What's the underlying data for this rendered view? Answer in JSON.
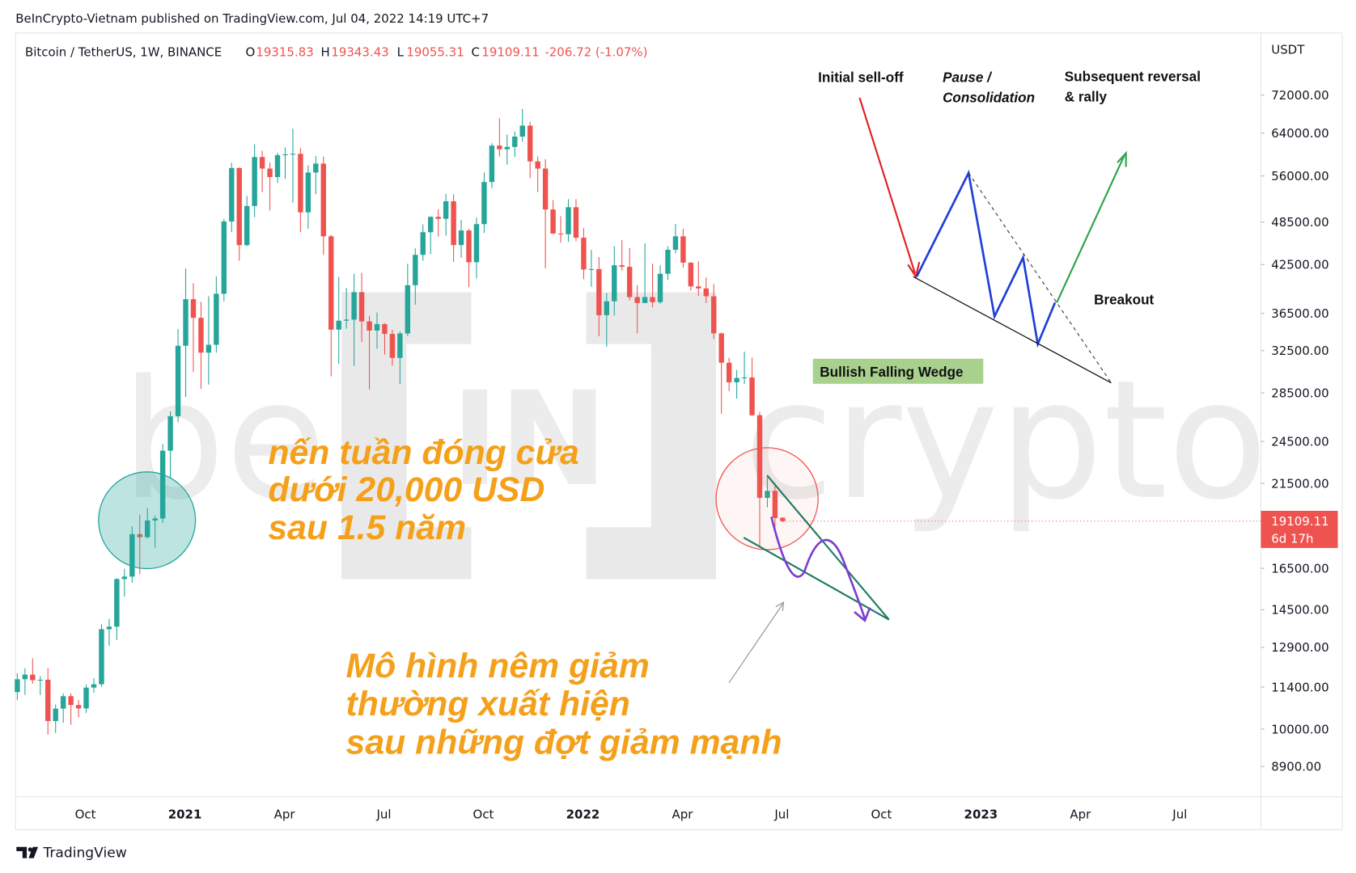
{
  "header": {
    "published": "BeInCrypto-Vietnam published on TradingView.com, Jul 04, 2022 14:19 UTC+7",
    "symbol": "Bitcoin / TetherUS, 1W, BINANCE",
    "open_label": "O",
    "high_label": "H",
    "low_label": "L",
    "close_label": "C",
    "change": "-206.72 (-1.07%)",
    "price_timer": "6d 17h",
    "footer": "TradingView"
  },
  "watermark": [
    "be",
    "IN",
    "crypto"
  ],
  "chart_data": {
    "type": "candlestick",
    "log": true,
    "grid": false,
    "y_unit": "USDT",
    "up_color": "#26a69a",
    "down_color": "#ef5350",
    "categories": [
      null,
      null,
      null,
      null,
      null,
      null,
      null,
      null,
      "Oct",
      null,
      null,
      null,
      null,
      null,
      null,
      null,
      null,
      null,
      null,
      null,
      null,
      "2021",
      null,
      null,
      null,
      null,
      null,
      null,
      null,
      null,
      null,
      null,
      null,
      null,
      "Apr",
      null,
      null,
      null,
      null,
      null,
      null,
      null,
      null,
      null,
      null,
      null,
      null,
      "Jul",
      null,
      null,
      null,
      null,
      null,
      null,
      null,
      null,
      null,
      null,
      null,
      null,
      "Oct",
      null,
      null,
      null,
      null,
      null,
      null,
      null,
      null,
      null,
      null,
      null,
      null,
      "2022",
      null,
      null,
      null,
      null,
      null,
      null,
      null,
      null,
      null,
      null,
      null,
      null,
      "Apr",
      null,
      null,
      null,
      null,
      null,
      null,
      null,
      null,
      null,
      null,
      null,
      null,
      "Jul",
      null,
      null,
      null,
      null,
      null,
      null,
      null,
      null,
      null,
      null,
      null,
      null,
      "Oct",
      null,
      null,
      null,
      null,
      null,
      null,
      null,
      null,
      null,
      null,
      null,
      null,
      "2023",
      null,
      null,
      null,
      null,
      null,
      null,
      null,
      null,
      null,
      null,
      null,
      null,
      "Apr",
      null,
      null,
      null,
      null,
      null,
      null,
      null,
      null,
      null,
      null,
      null,
      null,
      "Jul",
      null,
      null,
      null,
      null,
      null,
      null,
      null,
      null,
      null,
      null,
      null
    ],
    "open": [
      11222,
      11681,
      11850,
      11648,
      11663,
      10256,
      10660,
      11080,
      10780,
      10666,
      11380,
      11500,
      13650,
      13760,
      15960,
      16080,
      18350,
      18180,
      19150,
      19270,
      23800,
      26500,
      33000,
      38150,
      36000,
      32300,
      33100,
      38800,
      48600,
      57400,
      45140,
      51000,
      59400,
      57300,
      55800,
      59750,
      59900,
      60000,
      50000,
      56600,
      58200,
      46400,
      34700,
      35680,
      35800,
      39000,
      35600,
      34600,
      35300,
      34240,
      31780,
      34290,
      39850,
      43800,
      47000,
      49300,
      49000,
      51750,
      45150,
      47250,
      42800,
      48200,
      54950,
      61550,
      60850,
      61300,
      63300,
      65500,
      58600,
      57300,
      50450,
      46800,
      46700,
      50800,
      46200,
      41850,
      41900,
      36300,
      37900,
      42400,
      42200,
      38400,
      37700,
      38400,
      37800,
      41300,
      44500,
      46400,
      42750,
      39700,
      39450,
      38500,
      34300,
      31300,
      29450,
      29850,
      29900,
      26580,
      20550,
      21000,
      19315.83,
      null,
      null,
      null,
      null,
      null,
      null,
      null,
      null,
      null,
      null,
      null,
      null,
      null,
      null,
      null,
      null,
      null,
      null,
      null,
      null,
      null,
      null,
      null,
      null,
      null,
      null,
      null,
      null,
      null,
      null,
      null,
      null,
      null,
      null,
      null,
      null,
      null,
      null,
      null,
      null,
      null,
      null,
      null,
      null,
      null,
      null,
      null,
      null,
      null,
      null,
      null,
      null,
      null,
      null,
      null,
      null,
      null,
      null,
      null,
      null,
      null,
      null
    ],
    "high": [
      11902,
      12086,
      12468,
      11800,
      12088,
      10800,
      11178,
      11180,
      10950,
      11490,
      11720,
      13860,
      14100,
      16000,
      16480,
      18800,
      19500,
      19900,
      19450,
      24300,
      26900,
      34778,
      41950,
      40100,
      37850,
      38500,
      40950,
      49000,
      58350,
      57500,
      52640,
      61800,
      60600,
      58400,
      60200,
      61200,
      64900,
      61100,
      57900,
      59600,
      59500,
      46600,
      40900,
      39500,
      41300,
      41400,
      36200,
      36600,
      35400,
      34670,
      34500,
      42600,
      44700,
      48150,
      49400,
      50500,
      52950,
      52900,
      48850,
      47500,
      49200,
      56600,
      62000,
      67000,
      63700,
      64300,
      69000,
      66300,
      59500,
      59000,
      51950,
      49400,
      52100,
      52100,
      47600,
      44500,
      43500,
      38900,
      45000,
      45850,
      44750,
      39850,
      45400,
      42600,
      42400,
      45000,
      48200,
      47500,
      42800,
      42900,
      40800,
      40000,
      34400,
      31800,
      30600,
      32400,
      31800,
      26850,
      21900,
      21500,
      19343.43,
      null,
      null,
      null,
      null,
      null,
      null,
      null,
      null,
      null,
      null,
      null,
      null,
      null,
      null,
      null,
      null,
      null,
      null,
      null,
      null,
      null,
      null,
      null,
      null,
      null,
      null,
      null,
      null,
      null,
      null,
      null,
      null,
      null,
      null,
      null,
      null,
      null,
      null,
      null,
      null,
      null,
      null,
      null,
      null,
      null,
      null,
      null,
      null,
      null,
      null,
      null,
      null,
      null,
      null,
      null,
      null,
      null,
      null,
      null,
      null,
      null,
      null
    ],
    "low": [
      10953,
      11125,
      11520,
      11120,
      9825,
      9875,
      10200,
      10136,
      10370,
      10520,
      11200,
      11410,
      12960,
      13200,
      15100,
      15780,
      16200,
      18100,
      17600,
      19000,
      21900,
      26000,
      28130,
      30400,
      28850,
      29240,
      32300,
      37900,
      47000,
      43000,
      45000,
      49250,
      53250,
      50300,
      54800,
      55500,
      51500,
      47000,
      47500,
      52900,
      43800,
      30000,
      31200,
      34800,
      31000,
      33400,
      28800,
      32700,
      32100,
      31000,
      29300,
      34000,
      37500,
      43000,
      43900,
      46350,
      46500,
      42850,
      43400,
      39600,
      40700,
      46900,
      53900,
      59500,
      58000,
      59400,
      62300,
      55600,
      53250,
      42000,
      46750,
      45500,
      45600,
      45700,
      40600,
      39650,
      34000,
      32900,
      36250,
      41700,
      38000,
      34300,
      37700,
      37200,
      37600,
      40500,
      44000,
      42100,
      39200,
      38550,
      37700,
      33700,
      26700,
      28650,
      28000,
      29300,
      26500,
      17622,
      19950,
      18630,
      19055.31,
      null,
      null,
      null,
      null,
      null,
      null,
      null,
      null,
      null,
      null,
      null,
      null,
      null,
      null,
      null,
      null,
      null,
      null,
      null,
      null,
      null,
      null,
      null,
      null,
      null,
      null,
      null,
      null,
      null,
      null,
      null,
      null,
      null,
      null,
      null,
      null,
      null,
      null,
      null,
      null,
      null,
      null,
      null,
      null,
      null,
      null,
      null,
      null,
      null,
      null,
      null,
      null,
      null,
      null,
      null,
      null,
      null,
      null,
      null,
      null,
      null,
      null
    ],
    "close": [
      11681,
      11850,
      11648,
      11663,
      10256,
      10660,
      11080,
      10780,
      10666,
      11380,
      11500,
      13650,
      13760,
      15960,
      16080,
      18350,
      18180,
      19150,
      19270,
      23800,
      26500,
      33000,
      38150,
      36000,
      32300,
      33100,
      38800,
      48600,
      57400,
      45140,
      51000,
      59400,
      57300,
      55800,
      59750,
      59900,
      60000,
      50000,
      56600,
      58200,
      46400,
      34700,
      35680,
      35800,
      39000,
      35600,
      34600,
      35300,
      34240,
      31780,
      34290,
      39850,
      43800,
      47000,
      49300,
      49000,
      51750,
      45150,
      47250,
      42800,
      48200,
      54950,
      61550,
      60850,
      61300,
      63300,
      65500,
      58600,
      57300,
      50450,
      46800,
      46700,
      50800,
      46200,
      41850,
      41900,
      36300,
      37900,
      42400,
      42200,
      38400,
      37700,
      38400,
      37800,
      41300,
      44500,
      46400,
      42750,
      39700,
      39450,
      38500,
      34300,
      31300,
      29450,
      29850,
      29900,
      26580,
      20550,
      21000,
      19297,
      19109.11,
      null,
      null,
      null,
      null,
      null,
      null,
      null,
      null,
      null,
      null,
      null,
      null,
      null,
      null,
      null,
      null,
      null,
      null,
      null,
      null,
      null,
      null,
      null,
      null,
      null,
      null,
      null,
      null,
      null,
      null,
      null,
      null,
      null,
      null,
      null,
      null,
      null,
      null,
      null,
      null,
      null,
      null,
      null,
      null,
      null,
      null,
      null,
      null,
      null,
      null,
      null,
      null,
      null,
      null,
      null,
      null,
      null,
      null,
      null,
      null,
      null,
      null
    ],
    "ylim": [
      8100,
      87400
    ],
    "yticks": [
      {
        "value": 8900,
        "label": "8900.00"
      },
      {
        "value": 10000,
        "label": "10000.00"
      },
      {
        "value": 11400,
        "label": "11400.00"
      },
      {
        "value": 12900,
        "label": "12900.00"
      },
      {
        "value": 14500,
        "label": "14500.00"
      },
      {
        "value": 16500,
        "label": "16500.00"
      },
      {
        "value": 21500,
        "label": "21500.00"
      },
      {
        "value": 24500,
        "label": "24500.00"
      },
      {
        "value": 28500,
        "label": "28500.00"
      },
      {
        "value": 32500,
        "label": "32500.00"
      },
      {
        "value": 36500,
        "label": "36500.00"
      },
      {
        "value": 42500,
        "label": "42500.00"
      },
      {
        "value": 48500,
        "label": "48500.00"
      },
      {
        "value": 56000,
        "label": "56000.00"
      },
      {
        "value": 64000,
        "label": "64000.00"
      },
      {
        "value": 72000,
        "label": "72000.00"
      }
    ],
    "annotations": {
      "weekly_close": [
        "nến tuần đóng cửa",
        "dưới 20,000 USD",
        "sau 1.5 năm"
      ],
      "wedge_note": [
        "Mô hình nêm giảm",
        "thường xuất hiện",
        "sau những đợt giảm mạnh"
      ],
      "pattern_label": "Bullish Falling Wedge",
      "initial": "Initial sell-off",
      "pause": [
        "Pause /",
        "Consolidation"
      ],
      "reversal": [
        "Subsequent reversal",
        "& rally"
      ],
      "breakout": "Breakout"
    }
  }
}
